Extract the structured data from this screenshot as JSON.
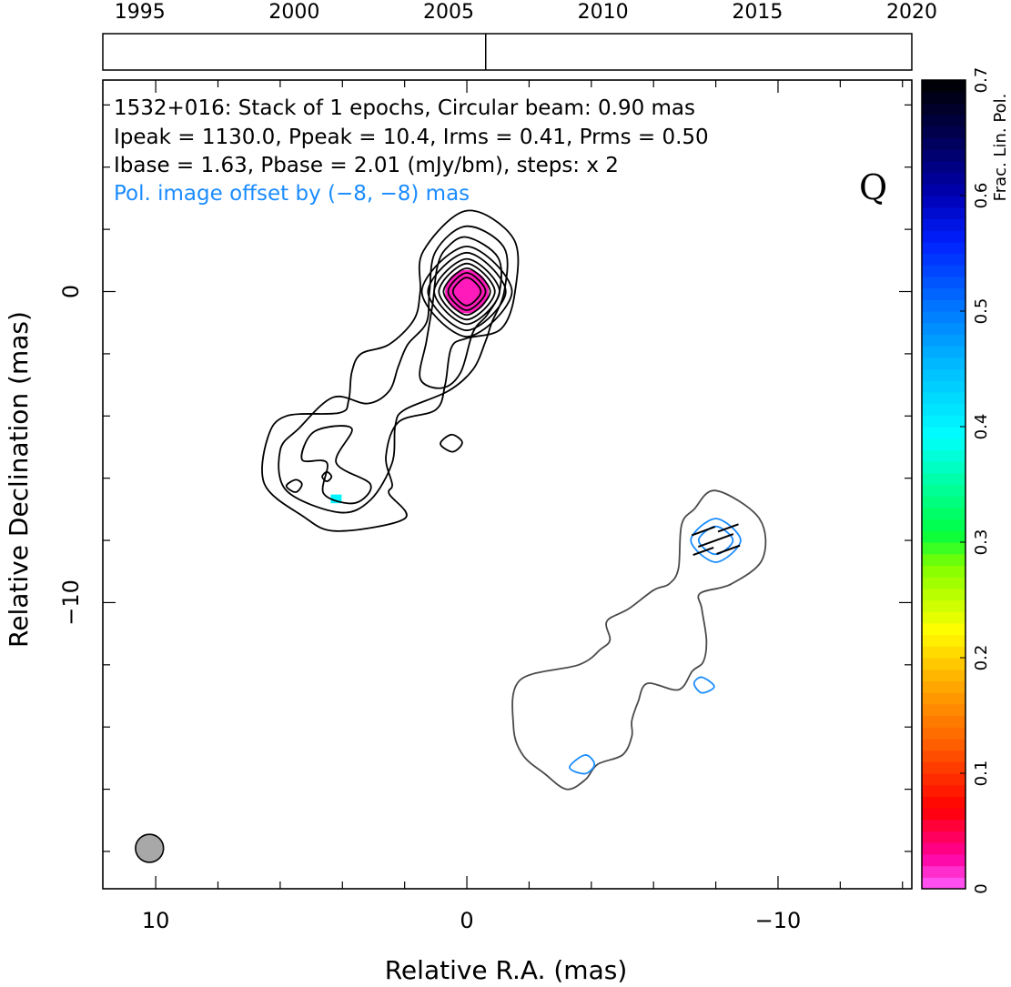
{
  "header": {
    "line1": "1532+016: Stack of 1 epochs, Circular beam: 0.90 mas",
    "line2": "Ipeak = 1130.0, Ppeak = 10.4, Irms = 0.41, Prms = 0.50",
    "line3": "Ibase = 1.63, Pbase = 2.01 (mJy/bm), steps: x 2",
    "line4": "Pol. image offset by (−8, −8) mas",
    "band": "Q"
  },
  "timeline": {
    "years": [
      "1995",
      "2000",
      "2005",
      "2010",
      "2015",
      "2020"
    ],
    "year_range": [
      1993.8,
      2020
    ],
    "epoch": 2006.2
  },
  "colors": {
    "total_intensity": "#000000",
    "pol_offset_contour": "#4a4a4a",
    "pol_contour": "#1a8cff",
    "header_note": "#1a8cff",
    "beam_fill": "#a8a8a8"
  },
  "chart_data": {
    "type": "contour map",
    "xlabel": "Relative R.A. (mas)",
    "ylabel": "Relative Declination (mas)",
    "xlim": [
      11.7,
      -14.3
    ],
    "ylim": [
      -19.2,
      6.8
    ],
    "x_ticks": [
      "10",
      "0",
      "−10"
    ],
    "y_ticks": [
      "0",
      "−10"
    ],
    "colorbar": {
      "label": "Frac. Lin. Pol.",
      "range": [
        0,
        0.7
      ],
      "ticks": [
        "0",
        "0.1",
        "0.2",
        "0.3",
        "0.4",
        "0.5",
        "0.6",
        "0.7"
      ]
    },
    "beam": {
      "ra": 10.2,
      "dec": -17.9,
      "major_mas": 0.9,
      "minor_mas": 0.9
    },
    "total_intensity_contours": [
      {
        "level": 1,
        "points": [
          [
            0,
            2.6
          ],
          [
            -1.5,
            1.7
          ],
          [
            -1.55,
            0
          ],
          [
            -1.1,
            -1.2
          ],
          [
            0,
            -1.5
          ],
          [
            0.5,
            -1.8
          ],
          [
            0.7,
            -3
          ],
          [
            1,
            -3.8
          ],
          [
            2.2,
            -4.2
          ],
          [
            2.6,
            -5.3
          ],
          [
            2.4,
            -6.2
          ],
          [
            2.5,
            -6.5
          ],
          [
            2,
            -7.3
          ],
          [
            4.2,
            -7.7
          ],
          [
            5.3,
            -7.2
          ],
          [
            6.5,
            -6.2
          ],
          [
            6.4,
            -4.7
          ],
          [
            5.8,
            -4
          ],
          [
            4.1,
            -3.9
          ],
          [
            3.8,
            -3.5
          ],
          [
            3.7,
            -2.6
          ],
          [
            3.4,
            -2
          ],
          [
            2.5,
            -1.7
          ],
          [
            1.7,
            -0.9
          ],
          [
            1.5,
            0
          ],
          [
            1.4,
            1.3
          ]
        ]
      },
      {
        "level": 2,
        "points": [
          [
            0,
            2.1
          ],
          [
            -1.2,
            1.4
          ],
          [
            -1.2,
            0
          ],
          [
            -0.8,
            -1
          ],
          [
            -0.6,
            -1.6
          ],
          [
            -0.2,
            -2.5
          ],
          [
            0.6,
            -3.2
          ],
          [
            2,
            -3.8
          ],
          [
            2.3,
            -4.3
          ],
          [
            2.4,
            -5.5
          ],
          [
            3.1,
            -6.7
          ],
          [
            4.1,
            -7.1
          ],
          [
            5.8,
            -6.4
          ],
          [
            6,
            -5.1
          ],
          [
            5.4,
            -4.4
          ],
          [
            4.3,
            -3.4
          ],
          [
            3.2,
            -3.6
          ],
          [
            2.5,
            -3.2
          ],
          [
            2.2,
            -2.4
          ],
          [
            1.9,
            -1.7
          ],
          [
            1.3,
            -1
          ],
          [
            1.2,
            0
          ],
          [
            1,
            1.3
          ]
        ]
      },
      {
        "level": 3,
        "points": [
          [
            0,
            1.75
          ],
          [
            -1.0,
            1.1
          ],
          [
            -1.05,
            0
          ],
          [
            -0.65,
            -0.75
          ],
          [
            -0.2,
            -1.3
          ],
          [
            0.2,
            -2.6
          ],
          [
            0.8,
            -3.1
          ],
          [
            1.5,
            -2.8
          ],
          [
            1.3,
            -1.6
          ],
          [
            1.1,
            -0.4
          ],
          [
            0.95,
            0.8
          ],
          [
            0.65,
            1.4
          ]
        ]
      },
      {
        "level": 4,
        "points": [
          [
            4.9,
            -4.5
          ],
          [
            3.7,
            -4.4
          ],
          [
            4.2,
            -5.5
          ],
          [
            3.1,
            -6.2
          ],
          [
            3.6,
            -6.8
          ],
          [
            4.6,
            -6.5
          ],
          [
            4.5,
            -5.5
          ],
          [
            5.3,
            -5.4
          ]
        ]
      },
      {
        "level": 4,
        "points": [
          [
            0.5,
            -4.6
          ],
          [
            0.15,
            -4.85
          ],
          [
            0.45,
            -5.15
          ],
          [
            0.85,
            -4.9
          ]
        ]
      },
      {
        "level": 4,
        "points": [
          [
            5.5,
            -6.05
          ],
          [
            5.3,
            -6.2
          ],
          [
            5.5,
            -6.45
          ],
          [
            5.8,
            -6.25
          ]
        ]
      },
      {
        "level": 5,
        "points": [
          [
            4.5,
            -5.8
          ],
          [
            4.35,
            -5.95
          ],
          [
            4.5,
            -6.1
          ],
          [
            4.65,
            -5.95
          ]
        ]
      },
      {
        "level": 10,
        "points": [
          [
            0,
            1.45
          ],
          [
            -1.45,
            0
          ],
          [
            0,
            -1.45
          ],
          [
            1.45,
            0
          ]
        ]
      },
      {
        "level": 20,
        "points": [
          [
            0,
            1.25
          ],
          [
            -1.25,
            0
          ],
          [
            0,
            -1.25
          ],
          [
            1.25,
            0
          ]
        ]
      },
      {
        "level": 40,
        "points": [
          [
            0,
            1.05
          ],
          [
            -1.05,
            0
          ],
          [
            0,
            -1.05
          ],
          [
            1.05,
            0
          ]
        ]
      },
      {
        "level": 80,
        "points": [
          [
            0,
            0.9
          ],
          [
            -0.9,
            0
          ],
          [
            0,
            -0.9
          ],
          [
            0.9,
            0
          ]
        ]
      },
      {
        "level": 160,
        "points": [
          [
            0,
            0.75
          ],
          [
            -0.75,
            0
          ],
          [
            0,
            -0.75
          ],
          [
            0.75,
            0
          ]
        ]
      },
      {
        "level": 320,
        "points": [
          [
            0,
            0.6
          ],
          [
            -0.6,
            0
          ],
          [
            0,
            -0.6
          ],
          [
            0.6,
            0
          ]
        ]
      },
      {
        "level": 640,
        "points": [
          [
            0,
            0.45
          ],
          [
            -0.45,
            0
          ],
          [
            0,
            -0.45
          ],
          [
            0.45,
            0
          ]
        ]
      }
    ],
    "polarized_intensity_contours_offset": [
      {
        "level": 1,
        "points": [
          [
            -8,
            -6.4
          ],
          [
            -9.4,
            -7.3
          ],
          [
            -9.5,
            -8.6
          ],
          [
            -8.5,
            -9.4
          ],
          [
            -7.5,
            -9.7
          ],
          [
            -7.55,
            -10.2
          ],
          [
            -7.7,
            -11.2
          ],
          [
            -7.6,
            -11.9
          ],
          [
            -7.25,
            -12.2
          ],
          [
            -6.8,
            -12.8
          ],
          [
            -5.8,
            -12.6
          ],
          [
            -5.5,
            -13.2
          ],
          [
            -5.3,
            -13.8
          ],
          [
            -5.3,
            -14.3
          ],
          [
            -5,
            -14.9
          ],
          [
            -4.2,
            -15.2
          ],
          [
            -3.8,
            -15.7
          ],
          [
            -3.2,
            -16
          ],
          [
            -2.5,
            -15.5
          ],
          [
            -1.8,
            -14.9
          ],
          [
            -1.5,
            -14
          ],
          [
            -1.7,
            -12.5
          ],
          [
            -3.6,
            -12
          ],
          [
            -4.3,
            -11.5
          ],
          [
            -4.6,
            -11.2
          ],
          [
            -4.5,
            -10.6
          ],
          [
            -5.2,
            -10.2
          ],
          [
            -6,
            -9.6
          ],
          [
            -6.5,
            -9.4
          ],
          [
            -6.8,
            -8.9
          ],
          [
            -6.9,
            -7.5
          ],
          [
            -7.3,
            -7
          ]
        ]
      },
      {
        "level": 2,
        "points": [
          [
            -7.55,
            -12.4
          ],
          [
            -7.3,
            -12.6
          ],
          [
            -7.55,
            -12.9
          ],
          [
            -7.95,
            -12.7
          ]
        ]
      }
    ],
    "polarized_intensity_contours": [
      {
        "level": 1,
        "points": [
          [
            -8,
            -7.3
          ],
          [
            -7.2,
            -8
          ],
          [
            -8,
            -8.7
          ],
          [
            -8.8,
            -8
          ]
        ]
      },
      {
        "level": 2,
        "points": [
          [
            -8,
            -7.55
          ],
          [
            -7.45,
            -8
          ],
          [
            -8,
            -8.45
          ],
          [
            -8.55,
            -8
          ]
        ]
      },
      {
        "level": 4,
        "points": [
          [
            -3.8,
            -14.9
          ],
          [
            -3.3,
            -15.3
          ],
          [
            -3.8,
            -15.5
          ],
          [
            -4.1,
            -15.2
          ]
        ]
      }
    ],
    "evpa_vectors": [
      {
        "ra": -8.0,
        "dec": -8.0,
        "angle_deg": 20,
        "length_mas": 1.2
      },
      {
        "ra": -7.6,
        "dec": -7.7,
        "angle_deg": 20,
        "length_mas": 0.8
      },
      {
        "ra": -8.4,
        "dec": -8.3,
        "angle_deg": 20,
        "length_mas": 0.8
      },
      {
        "ra": -7.6,
        "dec": -8.35,
        "angle_deg": 20,
        "length_mas": 0.7
      },
      {
        "ra": -8.4,
        "dec": -7.6,
        "angle_deg": 20,
        "length_mas": 0.7
      }
    ],
    "fractional_polarization_pixels": [
      {
        "ra": 0.0,
        "dec": 0.0,
        "frac": 0.02,
        "size": 1.4
      },
      {
        "ra": 4.2,
        "dec": -6.7,
        "frac": 0.4,
        "size": 0.35
      }
    ]
  }
}
